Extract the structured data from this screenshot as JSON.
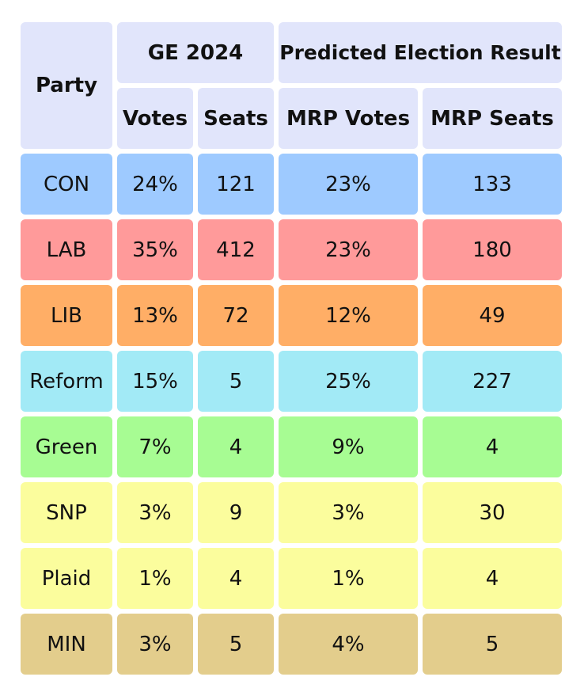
{
  "headers": {
    "party": "Party",
    "ge": "GE 2024",
    "predicted": "Predicted Election Result",
    "votes": "Votes",
    "seats": "Seats",
    "mrp_votes": "MRP Votes",
    "mrp_seats": "MRP Seats"
  },
  "rows": [
    {
      "party": "CON",
      "votes": "24%",
      "seats": "121",
      "mrp_votes": "23%",
      "mrp_seats": "133",
      "color": "#9ecaff"
    },
    {
      "party": "LAB",
      "votes": "35%",
      "seats": "412",
      "mrp_votes": "23%",
      "mrp_seats": "180",
      "color": "#ff9a9a"
    },
    {
      "party": "LIB",
      "votes": "13%",
      "seats": "72",
      "mrp_votes": "12%",
      "mrp_seats": "49",
      "color": "#ffae66"
    },
    {
      "party": "Reform",
      "votes": "15%",
      "seats": "5",
      "mrp_votes": "25%",
      "mrp_seats": "227",
      "color": "#a2eaf6"
    },
    {
      "party": "Green",
      "votes": "7%",
      "seats": "4",
      "mrp_votes": "9%",
      "mrp_seats": "4",
      "color": "#a7fc93"
    },
    {
      "party": "SNP",
      "votes": "3%",
      "seats": "9",
      "mrp_votes": "3%",
      "mrp_seats": "30",
      "color": "#fbfd9d"
    },
    {
      "party": "Plaid",
      "votes": "1%",
      "seats": "4",
      "mrp_votes": "1%",
      "mrp_seats": "4",
      "color": "#fbfd9d"
    },
    {
      "party": "MIN",
      "votes": "3%",
      "seats": "5",
      "mrp_votes": "4%",
      "mrp_seats": "5",
      "color": "#e3cd8c"
    }
  ]
}
